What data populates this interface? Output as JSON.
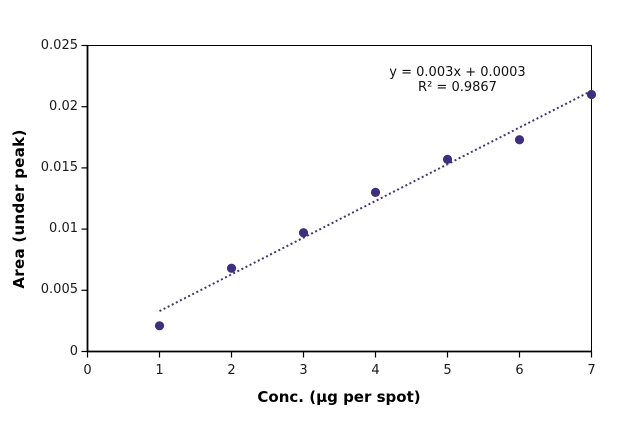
{
  "chart_data": {
    "type": "scatter",
    "x": [
      1,
      2,
      3,
      4,
      5,
      6,
      7
    ],
    "y": [
      0.0021,
      0.0068,
      0.0097,
      0.013,
      0.0157,
      0.0173,
      0.021
    ],
    "xlabel": "Conc. (µg per spot)",
    "ylabel": "Area (under peak)",
    "xlim": [
      0,
      7
    ],
    "ylim": [
      0,
      0.025
    ],
    "x_ticks": [
      "0",
      "1",
      "2",
      "3",
      "4",
      "5",
      "6",
      "7"
    ],
    "y_ticks": [
      "0",
      "0.005",
      "0.01",
      "0.015",
      "0.02",
      "0.025"
    ],
    "grid": "off",
    "legend": "none",
    "trendline": {
      "equation_slope": 0.003,
      "equation_intercept": 0.0003,
      "x_start": 1,
      "x_end": 7,
      "style": "dotted"
    },
    "annotation": {
      "line1": "y = 0.003x + 0.0003",
      "line2": "R² = 0.9867"
    },
    "marker_color": "#3E2F85",
    "trendline_color": "#43338F",
    "axis_color": "#000000",
    "text_color": "#1a1a1a"
  }
}
